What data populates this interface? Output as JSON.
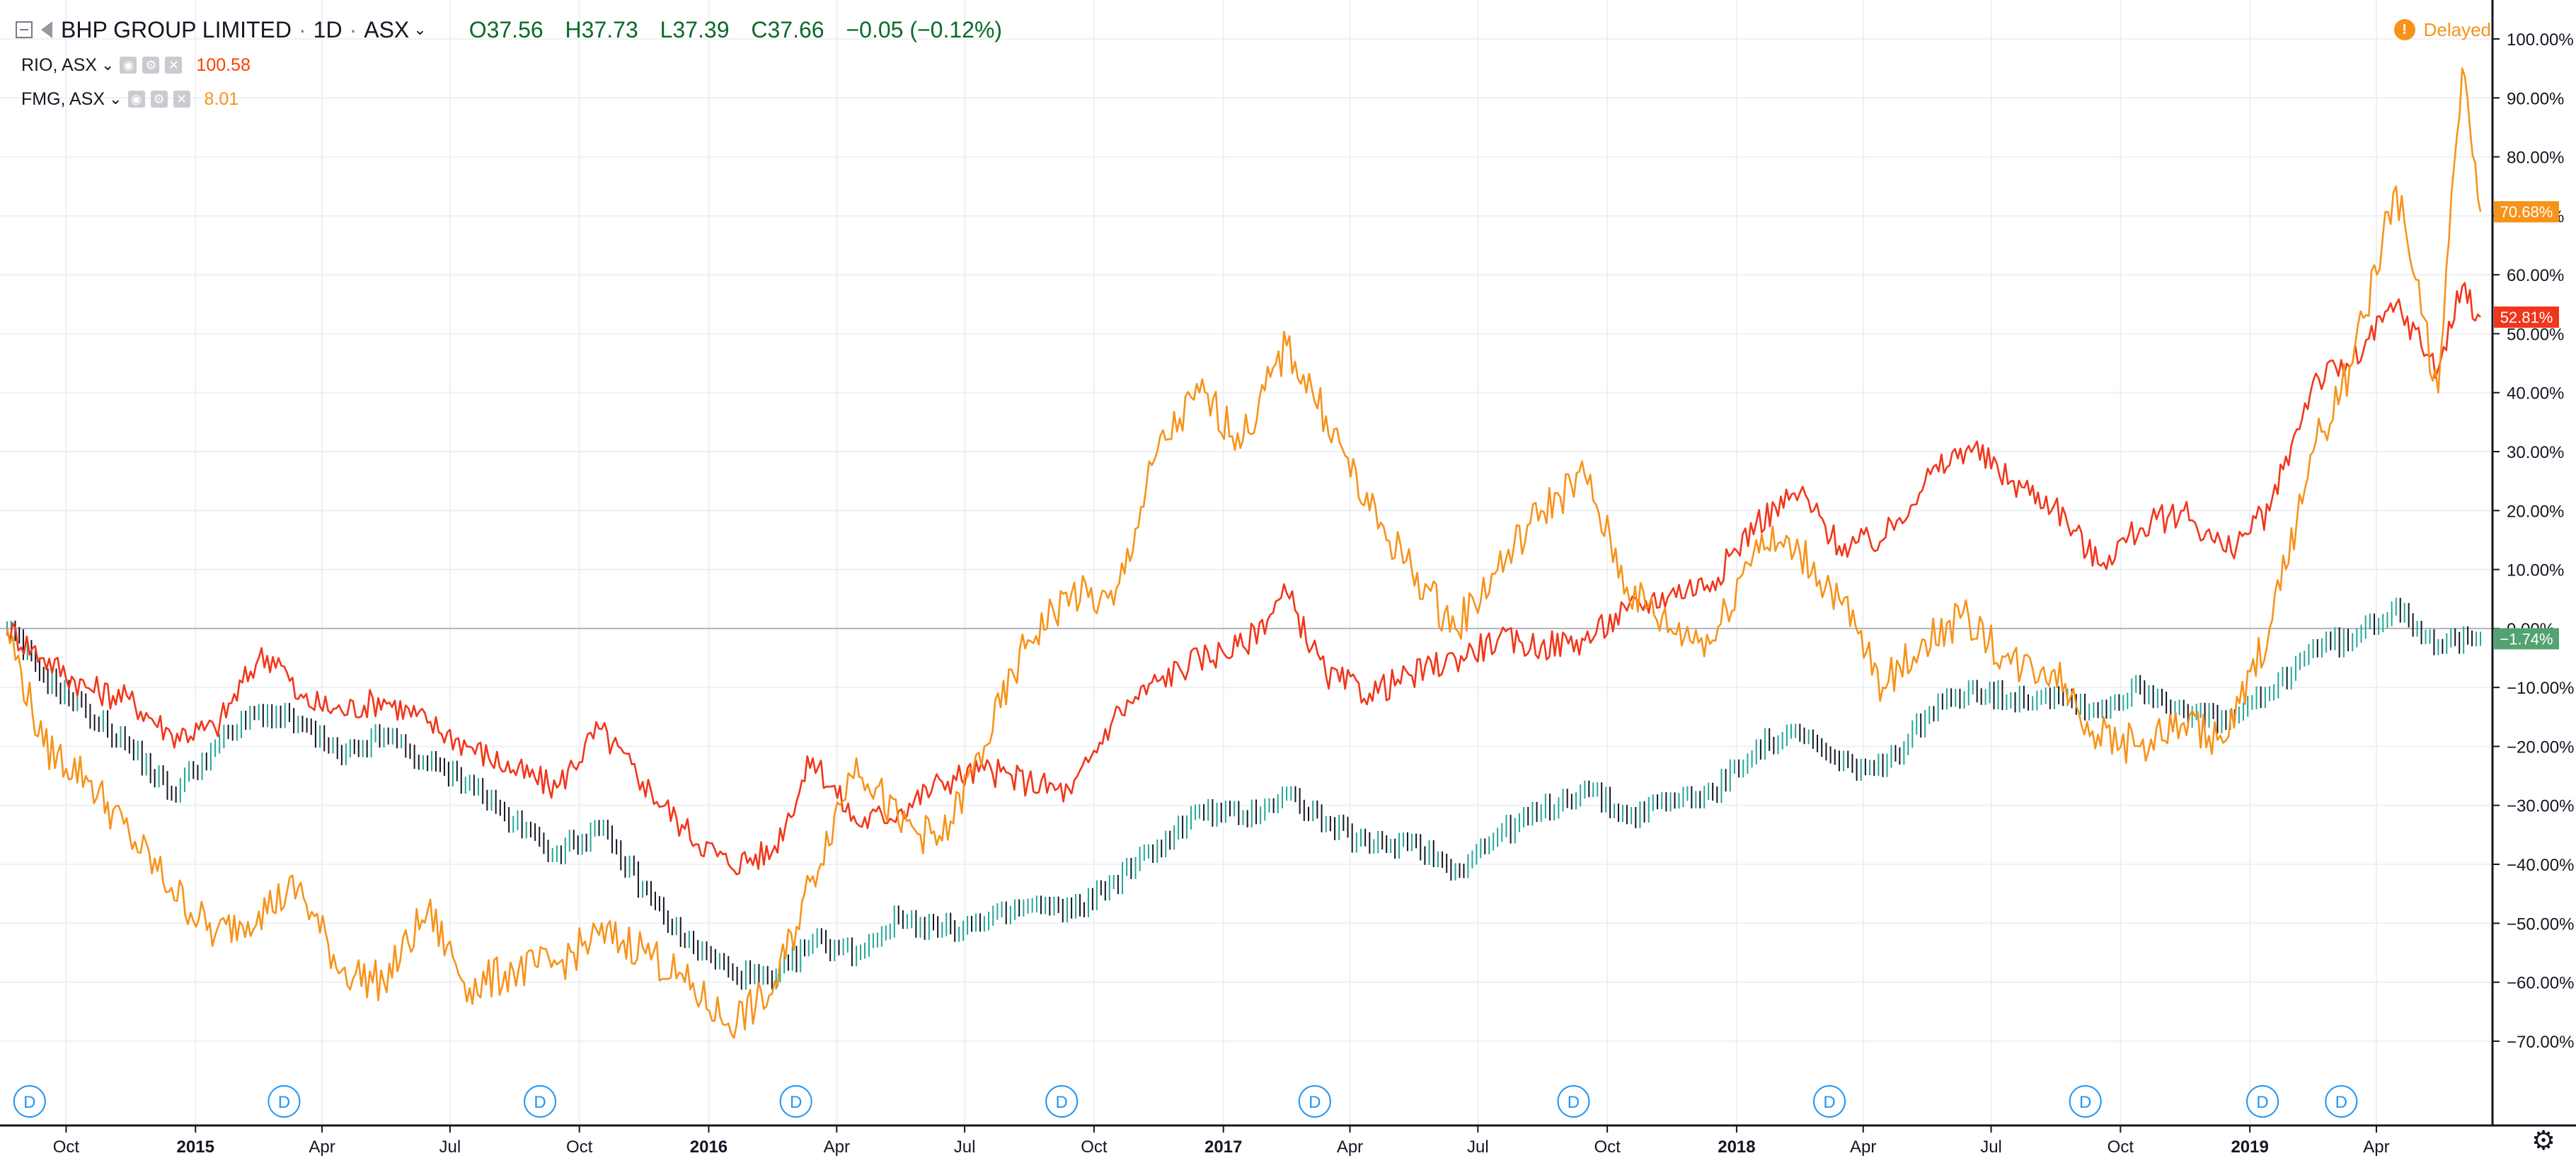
{
  "legend": {
    "main": {
      "symbol": "BHP GROUP LIMITED",
      "interval": "1D",
      "exchange": "ASX",
      "open": "O37.56",
      "high": "H37.73",
      "low": "L37.39",
      "close": "C37.66",
      "change": "−0.05 (−0.12%)"
    },
    "compare": [
      {
        "symbol": "RIO, ASX",
        "value": "100.58",
        "color": "#ff3d00"
      },
      {
        "symbol": "FMG, ASX",
        "value": "8.01",
        "color": "#f7931a"
      }
    ]
  },
  "status": {
    "delayed_label": "Delayed"
  },
  "colors": {
    "bhp_up": "#26a69a",
    "bhp_down": "#131722",
    "rio": "#f2361b",
    "fmg": "#f7931a",
    "bhp_label": "#53a271",
    "grid": "#eef0f3",
    "axis": "#131722",
    "dividend": "#2196f3"
  },
  "chart_data": {
    "type": "line",
    "price_scale": "percent",
    "ylim": [
      -75,
      100
    ],
    "y_ticks": [
      "100.00%",
      "90.00%",
      "80.00%",
      "70.00%",
      "60.00%",
      "50.00%",
      "40.00%",
      "30.00%",
      "20.00%",
      "10.00%",
      "0.00%",
      "−10.00%",
      "−20.00%",
      "−30.00%",
      "−40.00%",
      "−50.00%",
      "−60.00%",
      "−70.00%"
    ],
    "y_tick_values": [
      100,
      90,
      80,
      70,
      60,
      50,
      40,
      30,
      20,
      10,
      0,
      -10,
      -20,
      -30,
      -40,
      -50,
      -60,
      -70
    ],
    "x_range": [
      "2014-08-20",
      "2019-06-14"
    ],
    "x_ticks": [
      {
        "date": "2014-10-01",
        "label": "Oct",
        "bold": false
      },
      {
        "date": "2015-01-01",
        "label": "2015",
        "bold": true
      },
      {
        "date": "2015-04-01",
        "label": "Apr",
        "bold": false
      },
      {
        "date": "2015-07-01",
        "label": "Jul",
        "bold": false
      },
      {
        "date": "2015-10-01",
        "label": "Oct",
        "bold": false
      },
      {
        "date": "2016-01-01",
        "label": "2016",
        "bold": true
      },
      {
        "date": "2016-04-01",
        "label": "Apr",
        "bold": false
      },
      {
        "date": "2016-07-01",
        "label": "Jul",
        "bold": false
      },
      {
        "date": "2016-10-01",
        "label": "Oct",
        "bold": false
      },
      {
        "date": "2017-01-01",
        "label": "2017",
        "bold": true
      },
      {
        "date": "2017-04-01",
        "label": "Apr",
        "bold": false
      },
      {
        "date": "2017-07-01",
        "label": "Jul",
        "bold": false
      },
      {
        "date": "2017-10-01",
        "label": "Oct",
        "bold": false
      },
      {
        "date": "2018-01-01",
        "label": "2018",
        "bold": true
      },
      {
        "date": "2018-04-01",
        "label": "Apr",
        "bold": false
      },
      {
        "date": "2018-07-01",
        "label": "Jul",
        "bold": false
      },
      {
        "date": "2018-10-01",
        "label": "Oct",
        "bold": false
      },
      {
        "date": "2019-01-01",
        "label": "2019",
        "bold": true
      },
      {
        "date": "2019-04-01",
        "label": "Apr",
        "bold": false
      }
    ],
    "dividends": {
      "label": "D",
      "dates": [
        "2014-09-05",
        "2015-03-05",
        "2015-09-03",
        "2016-03-03",
        "2016-09-08",
        "2017-03-07",
        "2017-09-07",
        "2018-03-08",
        "2018-09-06",
        "2019-01-10",
        "2019-03-07"
      ]
    },
    "series": [
      {
        "name": "BHP",
        "style": "bars",
        "last_label": "−1.74%",
        "points": [
          [
            "2014-08-20",
            0
          ],
          [
            "2014-09-15",
            -8
          ],
          [
            "2014-10-15",
            -14
          ],
          [
            "2014-11-15",
            -20
          ],
          [
            "2014-12-15",
            -28
          ],
          [
            "2015-01-15",
            -20
          ],
          [
            "2015-02-15",
            -14
          ],
          [
            "2015-03-15",
            -16
          ],
          [
            "2015-04-15",
            -22
          ],
          [
            "2015-05-15",
            -18
          ],
          [
            "2015-06-15",
            -23
          ],
          [
            "2015-07-15",
            -26
          ],
          [
            "2015-08-15",
            -33
          ],
          [
            "2015-09-15",
            -38
          ],
          [
            "2015-10-15",
            -34
          ],
          [
            "2015-11-15",
            -44
          ],
          [
            "2015-12-15",
            -53
          ],
          [
            "2016-01-15",
            -58
          ],
          [
            "2016-02-15",
            -60
          ],
          [
            "2016-03-15",
            -53
          ],
          [
            "2016-04-15",
            -55
          ],
          [
            "2016-05-15",
            -49
          ],
          [
            "2016-06-15",
            -51
          ],
          [
            "2016-07-15",
            -50
          ],
          [
            "2016-08-15",
            -47
          ],
          [
            "2016-09-15",
            -48
          ],
          [
            "2016-10-15",
            -43
          ],
          [
            "2016-11-15",
            -37
          ],
          [
            "2016-12-15",
            -31
          ],
          [
            "2017-01-15",
            -32
          ],
          [
            "2017-02-15",
            -28
          ],
          [
            "2017-03-15",
            -33
          ],
          [
            "2017-04-15",
            -37
          ],
          [
            "2017-05-15",
            -36
          ],
          [
            "2017-06-15",
            -41
          ],
          [
            "2017-07-15",
            -35
          ],
          [
            "2017-08-15",
            -31
          ],
          [
            "2017-09-15",
            -27
          ],
          [
            "2017-10-15",
            -32
          ],
          [
            "2017-11-15",
            -29
          ],
          [
            "2017-12-15",
            -28
          ],
          [
            "2018-01-15",
            -20
          ],
          [
            "2018-02-15",
            -18
          ],
          [
            "2018-03-15",
            -23
          ],
          [
            "2018-04-15",
            -24
          ],
          [
            "2018-05-15",
            -15
          ],
          [
            "2018-06-15",
            -10
          ],
          [
            "2018-07-15",
            -12
          ],
          [
            "2018-08-15",
            -11
          ],
          [
            "2018-09-15",
            -14
          ],
          [
            "2018-10-15",
            -10
          ],
          [
            "2018-11-15",
            -14
          ],
          [
            "2018-12-15",
            -16
          ],
          [
            "2019-01-15",
            -11
          ],
          [
            "2019-02-15",
            -3
          ],
          [
            "2019-03-15",
            -2
          ],
          [
            "2019-04-15",
            4
          ],
          [
            "2019-05-15",
            -3
          ],
          [
            "2019-06-14",
            -1.74
          ]
        ]
      },
      {
        "name": "RIO",
        "style": "line",
        "last_label": "52.81%",
        "points": [
          [
            "2014-08-20",
            0
          ],
          [
            "2014-09-15",
            -5
          ],
          [
            "2014-10-15",
            -10
          ],
          [
            "2014-11-15",
            -12
          ],
          [
            "2014-12-15",
            -18
          ],
          [
            "2015-01-15",
            -17
          ],
          [
            "2015-02-15",
            -5
          ],
          [
            "2015-03-01",
            -5
          ],
          [
            "2015-03-15",
            -12
          ],
          [
            "2015-04-15",
            -14
          ],
          [
            "2015-05-15",
            -12
          ],
          [
            "2015-06-15",
            -16
          ],
          [
            "2015-07-15",
            -20
          ],
          [
            "2015-08-15",
            -24
          ],
          [
            "2015-09-15",
            -27
          ],
          [
            "2015-10-15",
            -17
          ],
          [
            "2015-11-15",
            -26
          ],
          [
            "2015-12-15",
            -34
          ],
          [
            "2016-01-15",
            -40
          ],
          [
            "2016-02-15",
            -38
          ],
          [
            "2016-03-15",
            -22
          ],
          [
            "2016-04-15",
            -33
          ],
          [
            "2016-05-15",
            -31
          ],
          [
            "2016-06-15",
            -26
          ],
          [
            "2016-07-15",
            -24
          ],
          [
            "2016-08-15",
            -26
          ],
          [
            "2016-09-15",
            -28
          ],
          [
            "2016-10-15",
            -15
          ],
          [
            "2016-11-15",
            -9
          ],
          [
            "2016-12-15",
            -5
          ],
          [
            "2017-01-15",
            -3
          ],
          [
            "2017-02-15",
            6
          ],
          [
            "2017-03-15",
            -8
          ],
          [
            "2017-04-15",
            -11
          ],
          [
            "2017-05-15",
            -8
          ],
          [
            "2017-06-15",
            -5
          ],
          [
            "2017-07-15",
            -2
          ],
          [
            "2017-08-15",
            -3
          ],
          [
            "2017-09-15",
            -2
          ],
          [
            "2017-10-15",
            3
          ],
          [
            "2017-11-15",
            6
          ],
          [
            "2017-12-15",
            8
          ],
          [
            "2018-01-15",
            18
          ],
          [
            "2018-02-15",
            23
          ],
          [
            "2018-03-15",
            14
          ],
          [
            "2018-04-15",
            15
          ],
          [
            "2018-05-15",
            25
          ],
          [
            "2018-06-15",
            31
          ],
          [
            "2018-07-15",
            25
          ],
          [
            "2018-08-15",
            21
          ],
          [
            "2018-09-15",
            11
          ],
          [
            "2018-10-15",
            17
          ],
          [
            "2018-11-15",
            20
          ],
          [
            "2018-12-15",
            13
          ],
          [
            "2019-01-15",
            20
          ],
          [
            "2019-02-15",
            42
          ],
          [
            "2019-03-15",
            45
          ],
          [
            "2019-04-15",
            55
          ],
          [
            "2019-05-15",
            44
          ],
          [
            "2019-06-01",
            58
          ],
          [
            "2019-06-14",
            52.81
          ]
        ]
      },
      {
        "name": "FMG",
        "style": "line",
        "last_label": "70.68%",
        "points": [
          [
            "2014-08-20",
            0
          ],
          [
            "2014-09-15",
            -20
          ],
          [
            "2014-10-15",
            -25
          ],
          [
            "2014-11-15",
            -35
          ],
          [
            "2014-12-15",
            -44
          ],
          [
            "2015-01-15",
            -52
          ],
          [
            "2015-02-15",
            -48
          ],
          [
            "2015-03-15",
            -44
          ],
          [
            "2015-04-15",
            -58
          ],
          [
            "2015-05-15",
            -60
          ],
          [
            "2015-06-15",
            -48
          ],
          [
            "2015-07-15",
            -61
          ],
          [
            "2015-08-15",
            -58
          ],
          [
            "2015-09-15",
            -57
          ],
          [
            "2015-10-15",
            -52
          ],
          [
            "2015-11-15",
            -54
          ],
          [
            "2015-12-15",
            -60
          ],
          [
            "2016-01-15",
            -67
          ],
          [
            "2016-02-15",
            -62
          ],
          [
            "2016-03-15",
            -42
          ],
          [
            "2016-04-15",
            -22
          ],
          [
            "2016-05-15",
            -33
          ],
          [
            "2016-06-15",
            -36
          ],
          [
            "2016-07-15",
            -20
          ],
          [
            "2016-08-15",
            -2
          ],
          [
            "2016-09-15",
            6
          ],
          [
            "2016-10-15",
            4
          ],
          [
            "2016-11-15",
            30
          ],
          [
            "2016-12-15",
            40
          ],
          [
            "2017-01-15",
            32
          ],
          [
            "2017-02-15",
            48
          ],
          [
            "2017-03-15",
            36
          ],
          [
            "2017-04-15",
            20
          ],
          [
            "2017-05-15",
            10
          ],
          [
            "2017-06-15",
            0
          ],
          [
            "2017-07-15",
            10
          ],
          [
            "2017-08-15",
            20
          ],
          [
            "2017-09-15",
            26
          ],
          [
            "2017-10-15",
            7
          ],
          [
            "2017-11-15",
            0
          ],
          [
            "2017-12-15",
            -2
          ],
          [
            "2018-01-15",
            15
          ],
          [
            "2018-02-15",
            13
          ],
          [
            "2018-03-15",
            5
          ],
          [
            "2018-04-15",
            -10
          ],
          [
            "2018-05-15",
            -2
          ],
          [
            "2018-06-15",
            2
          ],
          [
            "2018-07-15",
            -6
          ],
          [
            "2018-08-15",
            -7
          ],
          [
            "2018-09-15",
            -18
          ],
          [
            "2018-10-15",
            -20
          ],
          [
            "2018-11-15",
            -16
          ],
          [
            "2018-12-15",
            -19
          ],
          [
            "2019-01-15",
            0
          ],
          [
            "2019-02-15",
            30
          ],
          [
            "2019-03-15",
            45
          ],
          [
            "2019-04-15",
            75
          ],
          [
            "2019-05-15",
            40
          ],
          [
            "2019-06-01",
            95
          ],
          [
            "2019-06-14",
            70.68
          ]
        ]
      }
    ]
  }
}
